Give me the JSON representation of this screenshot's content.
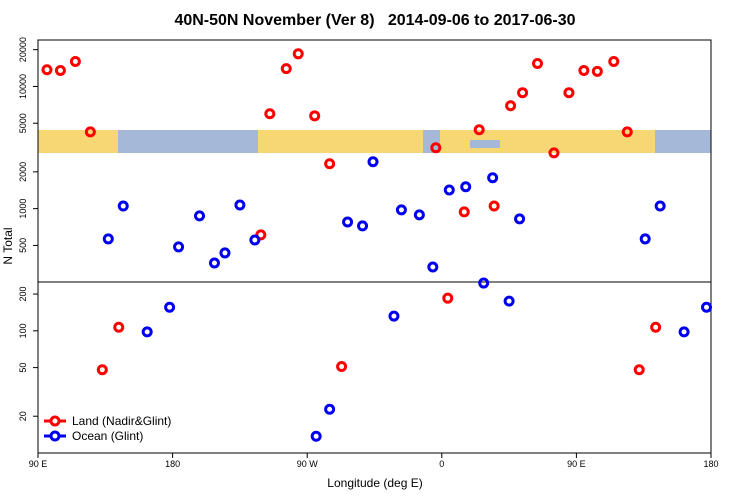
{
  "chart_data": {
    "type": "scatter",
    "title": "40N-50N November (Ver 8)   2014-09-06 to 2017-06-30",
    "x_label": "Longitude (deg E)",
    "y_label": "N Total",
    "log_y": true,
    "xlim": [
      90,
      540
    ],
    "xticks": [
      {
        "value": 90,
        "label": "90 E"
      },
      180,
      {
        "value": 270,
        "label": "90 W"
      },
      {
        "value": 360,
        "label": "0"
      },
      {
        "value": 450,
        "label": "90 E"
      },
      {
        "value": 540,
        "label": "180"
      }
    ],
    "ylim": [
      10,
      24000
    ],
    "yticks": [
      20,
      50,
      100,
      200,
      500,
      1000,
      2000,
      5000,
      10000,
      20000
    ],
    "legend": "bottom-left",
    "series": [
      {
        "name": "Land (Nadir&Glint)",
        "color": "#ff0000",
        "x": [
          96,
          105,
          115,
          125,
          133,
          144,
          239,
          245,
          256,
          264,
          275,
          285,
          293,
          356,
          364,
          375,
          385,
          395,
          406,
          414,
          424,
          435,
          445,
          455,
          464,
          475,
          484,
          492,
          503
        ],
        "values": [
          13700,
          13500,
          16000,
          4250,
          48,
          107,
          610,
          5980,
          14000,
          18500,
          5750,
          2330,
          51,
          3150,
          185,
          940,
          4420,
          1050,
          6950,
          8890,
          15400,
          2860,
          8890,
          13500,
          13300,
          16000,
          4250,
          48,
          107
        ]
      },
      {
        "name": "Ocean (Glint)",
        "color": "#0000ee",
        "x": [
          137,
          147,
          163,
          178,
          184,
          198,
          208,
          215,
          225,
          235,
          276,
          285,
          297,
          307,
          314,
          328,
          333,
          345,
          354,
          365,
          376,
          388,
          394,
          405,
          412,
          496,
          506,
          522,
          537
        ],
        "values": [
          565,
          1050,
          98,
          156,
          486,
          872,
          359,
          434,
          1070,
          554,
          13.7,
          22.8,
          778,
          722,
          2420,
          132,
          977,
          889,
          333,
          1420,
          1510,
          246,
          1790,
          175,
          824,
          565,
          1050,
          98,
          156
        ]
      }
    ]
  }
}
